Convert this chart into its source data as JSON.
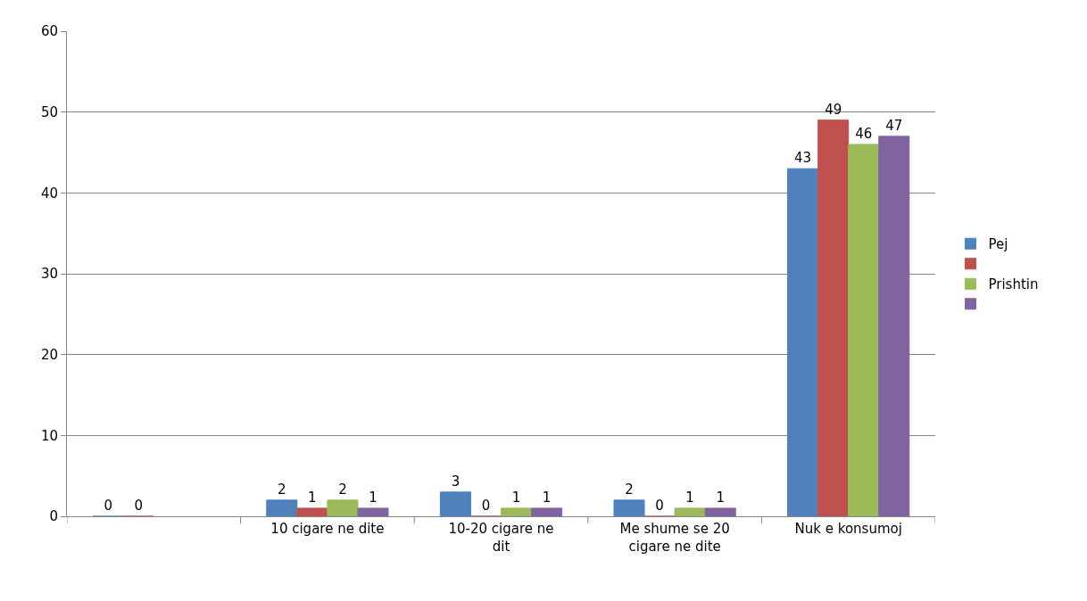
{
  "chart_data": {
    "type": "bar",
    "categories": [
      null,
      "10 cigare ne dite",
      "10-20 cigare ne dit",
      "Me shume se 20 cigare ne dite",
      "Nuk e konsumoj"
    ],
    "series": [
      {
        "name": "Pej",
        "color": "#4f81bd",
        "values": [
          0,
          2,
          3,
          2,
          43
        ]
      },
      {
        "color": "#c0504d",
        "values": [
          0,
          1,
          0,
          0,
          49
        ]
      },
      {
        "name": "Prishtin",
        "color": "#9bbb59",
        "values": [
          null,
          2,
          1,
          1,
          46
        ]
      },
      {
        "color": "#8064a2",
        "values": [
          null,
          1,
          1,
          1,
          47
        ]
      }
    ],
    "ylim": [
      0,
      60
    ],
    "yticks": [
      0,
      10,
      20,
      30,
      40,
      50,
      60
    ],
    "grid": "y",
    "legend": "right",
    "data_labels": true
  }
}
